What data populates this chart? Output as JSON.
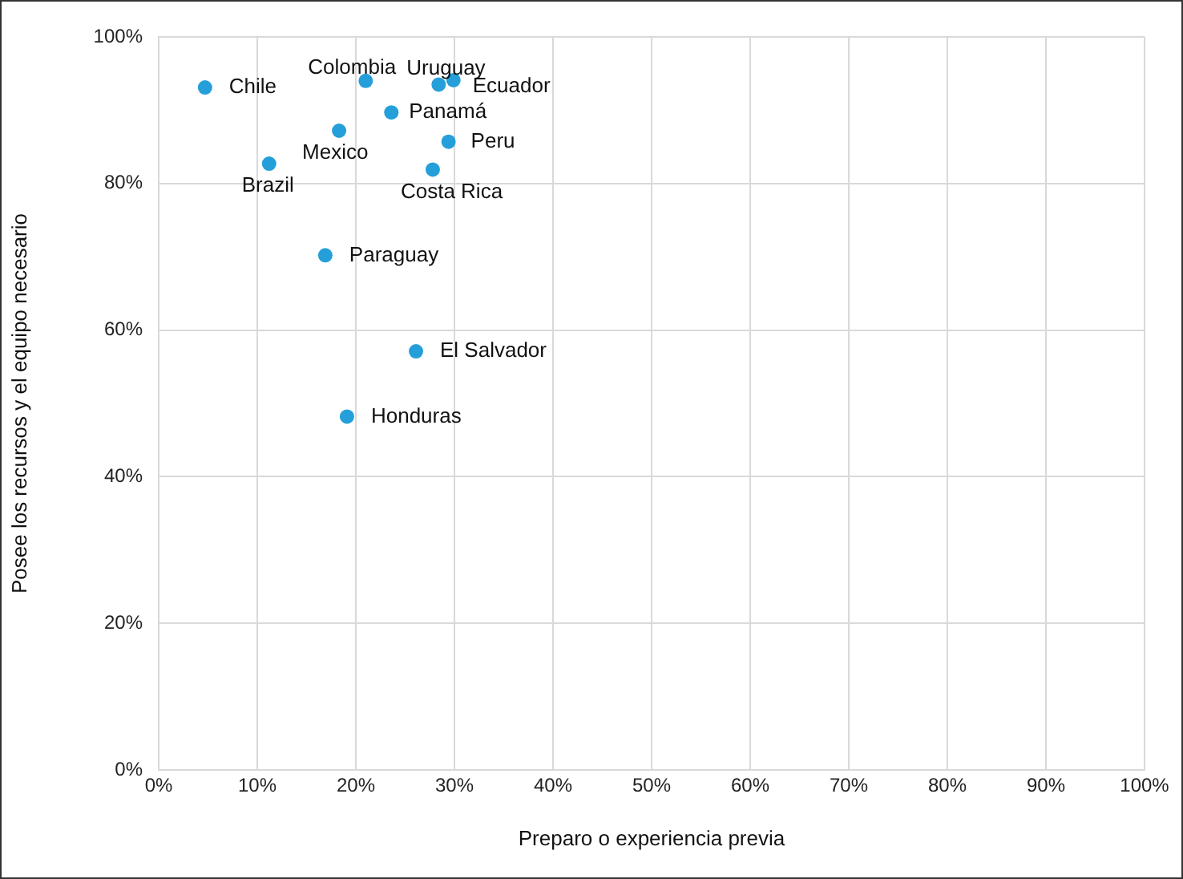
{
  "chart_data": {
    "type": "scatter",
    "xlabel": "Preparo o experiencia previa",
    "ylabel": "Posee los recursos y el equipo necesario",
    "x": [
      4.7,
      21.0,
      28.4,
      29.9,
      23.6,
      18.3,
      29.4,
      11.2,
      27.8,
      16.9,
      26.1,
      19.1
    ],
    "series": [
      {
        "color": "#259fd9",
        "values": [
          93.1,
          94.0,
          93.5,
          94.1,
          89.7,
          87.2,
          85.7,
          82.7,
          81.9,
          70.2,
          57.1,
          48.2
        ]
      }
    ],
    "annotations": [
      {
        "text": "Chile",
        "x": 4.7,
        "y": 93.1
      },
      {
        "text": "Colombia",
        "x": 21.0,
        "y": 94.0
      },
      {
        "text": "Uruguay",
        "x": 28.4,
        "y": 93.5
      },
      {
        "text": "Ecuador",
        "x": 29.9,
        "y": 94.1
      },
      {
        "text": "Panamá",
        "x": 23.6,
        "y": 89.7
      },
      {
        "text": "Mexico",
        "x": 18.3,
        "y": 87.2
      },
      {
        "text": "Peru",
        "x": 29.4,
        "y": 85.7
      },
      {
        "text": "Brazil",
        "x": 11.2,
        "y": 82.7
      },
      {
        "text": "Costa Rica",
        "x": 27.8,
        "y": 81.9
      },
      {
        "text": "Paraguay",
        "x": 16.9,
        "y": 70.2
      },
      {
        "text": "El Salvador",
        "x": 26.1,
        "y": 57.1
      },
      {
        "text": "Honduras",
        "x": 19.1,
        "y": 48.2
      }
    ],
    "xlim": [
      0,
      100
    ],
    "xticks": [
      {
        "value": 0,
        "label": "0%"
      },
      {
        "value": 10,
        "label": "10%"
      },
      {
        "value": 20,
        "label": "20%"
      },
      {
        "value": 30,
        "label": "30%"
      },
      {
        "value": 40,
        "label": "40%"
      },
      {
        "value": 50,
        "label": "50%"
      },
      {
        "value": 60,
        "label": "60%"
      },
      {
        "value": 70,
        "label": "70%"
      },
      {
        "value": 80,
        "label": "80%"
      },
      {
        "value": 90,
        "label": "90%"
      },
      {
        "value": 100,
        "label": "100%"
      }
    ],
    "ylim": [
      0,
      100
    ],
    "yticks": [
      {
        "value": 0,
        "label": "0%"
      },
      {
        "value": 20,
        "label": "20%"
      },
      {
        "value": 40,
        "label": "40%"
      },
      {
        "value": 60,
        "label": "60%"
      },
      {
        "value": 80,
        "label": "80%"
      },
      {
        "value": 100,
        "label": "100%"
      }
    ],
    "grid": true,
    "marker": "circle",
    "legend": false
  }
}
